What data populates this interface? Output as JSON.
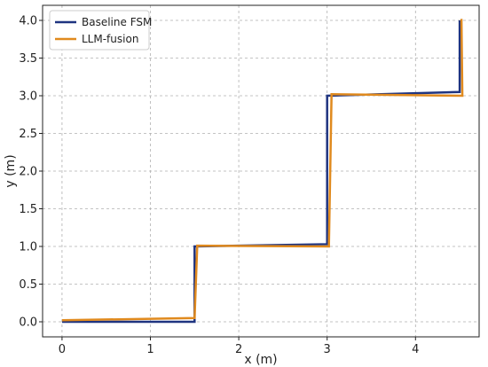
{
  "chart_data": {
    "type": "line",
    "xlabel": "x (m)",
    "ylabel": "y (m)",
    "xlim": [
      -0.22,
      4.72
    ],
    "ylim": [
      -0.2,
      4.2
    ],
    "xticks": [
      0,
      1,
      2,
      3,
      4
    ],
    "xtick_labels": [
      "0",
      "1",
      "2",
      "3",
      "4"
    ],
    "yticks": [
      0.0,
      0.5,
      1.0,
      1.5,
      2.0,
      2.5,
      3.0,
      3.5,
      4.0
    ],
    "ytick_labels": [
      "0.0",
      "0.5",
      "1.0",
      "1.5",
      "2.0",
      "2.5",
      "3.0",
      "3.5",
      "4.0"
    ],
    "grid": true,
    "legend_position": "top-left",
    "series": [
      {
        "name": "Baseline FSM",
        "color": "#1f3480",
        "x": [
          0.0,
          1.5,
          1.5,
          3.0,
          3.0,
          4.5,
          4.5
        ],
        "y": [
          0.0,
          0.0,
          1.0,
          1.03,
          3.0,
          3.05,
          4.0
        ]
      },
      {
        "name": "LLM-fusion",
        "color": "#e08a1e",
        "x": [
          0.0,
          1.5,
          1.53,
          3.02,
          3.05,
          4.53,
          4.52
        ],
        "y": [
          0.02,
          0.05,
          1.01,
          1.0,
          3.02,
          3.0,
          4.02
        ]
      }
    ]
  }
}
